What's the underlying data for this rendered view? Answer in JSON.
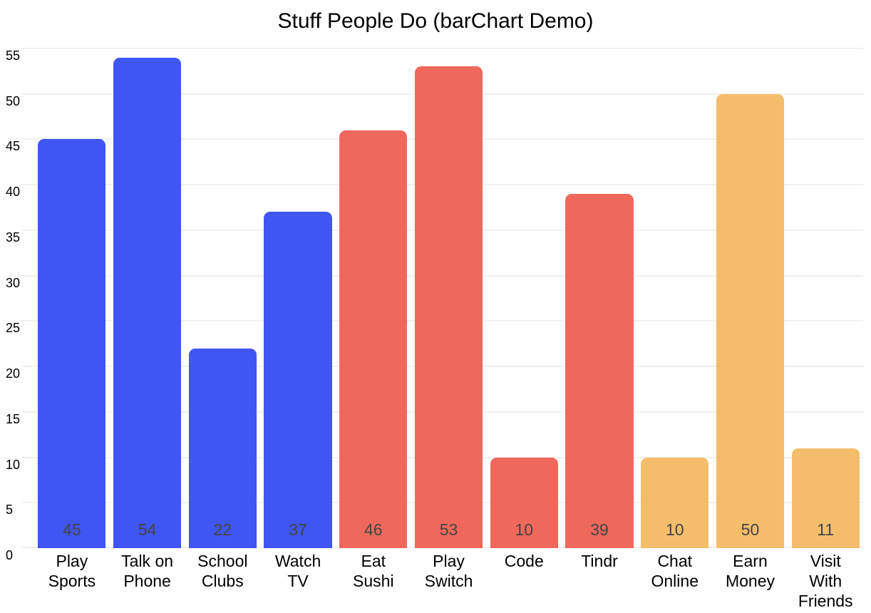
{
  "chart_data": {
    "type": "bar",
    "title": "Stuff People Do (barChart Demo)",
    "categories": [
      "Play Sports",
      "Talk on Phone",
      "School Clubs",
      "Watch TV",
      "Eat Sushi",
      "Play Switch",
      "Code",
      "Tindr",
      "Chat Online",
      "Earn Money",
      "Visit With Friends"
    ],
    "category_label_lines": [
      [
        "Play",
        "Sports"
      ],
      [
        "Talk on",
        "Phone"
      ],
      [
        "School",
        "Clubs"
      ],
      [
        "Watch",
        "TV"
      ],
      [
        "Eat",
        "Sushi"
      ],
      [
        "Play",
        "Switch"
      ],
      [
        "Code"
      ],
      [
        "Tindr"
      ],
      [
        "Chat",
        "Online"
      ],
      [
        "Earn",
        "Money"
      ],
      [
        "Visit",
        "With",
        "Friends"
      ]
    ],
    "values": [
      45,
      54,
      22,
      37,
      46,
      53,
      10,
      39,
      10,
      50,
      11
    ],
    "value_labels": [
      "45",
      "54",
      "22",
      "37",
      "46",
      "53",
      "10",
      "39",
      "10",
      "50",
      "11"
    ],
    "bar_colors": [
      "#3F56F2",
      "#3F56F2",
      "#3F56F2",
      "#3F56F2",
      "#F0685C",
      "#F0685C",
      "#F0685C",
      "#F0685C",
      "#F4BD6C",
      "#F4BD6C",
      "#F4BD6C"
    ],
    "yticks": [
      0,
      5,
      10,
      15,
      20,
      25,
      30,
      35,
      40,
      45,
      50,
      55
    ],
    "ylim": [
      0,
      55
    ],
    "xlabel": "",
    "ylabel": "",
    "grid": "horizontal-only",
    "legend": "none",
    "value_label_position": "inside-bottom"
  },
  "style": {
    "background": "#FFFFFF",
    "grid_color": "#F0F0F0",
    "title_color": "#000000",
    "axis_label_color": "#000000",
    "value_label_color": "#444444",
    "palette": {
      "blue": "#3F56F2",
      "red": "#F0685C",
      "orange": "#F4BD6C"
    }
  }
}
